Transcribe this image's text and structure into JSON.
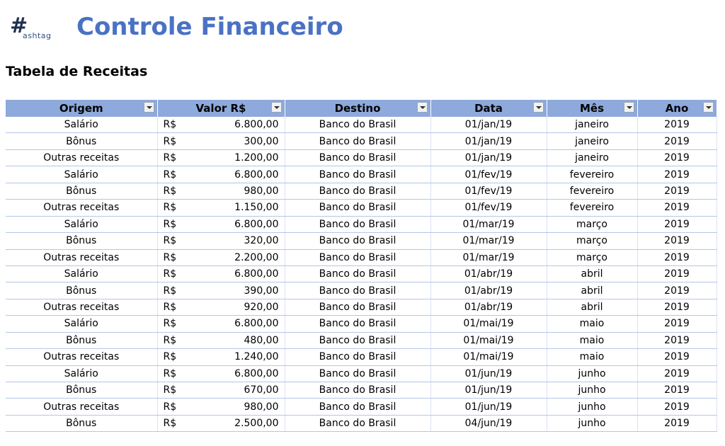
{
  "header": {
    "logo_text": "ashtag",
    "title": "Controle Financeiro"
  },
  "section": {
    "title": "Tabela de Receitas"
  },
  "table": {
    "columns": [
      "Origem",
      "Valor R$",
      "Destino",
      "Data",
      "Mês",
      "Ano"
    ],
    "currency": "R$",
    "rows": [
      [
        "Salário",
        "6.800,00",
        "Banco do Brasil",
        "01/jan/19",
        "janeiro",
        "2019"
      ],
      [
        "Bônus",
        "300,00",
        "Banco do Brasil",
        "01/jan/19",
        "janeiro",
        "2019"
      ],
      [
        "Outras receitas",
        "1.200,00",
        "Banco do Brasil",
        "01/jan/19",
        "janeiro",
        "2019"
      ],
      [
        "Salário",
        "6.800,00",
        "Banco do Brasil",
        "01/fev/19",
        "fevereiro",
        "2019"
      ],
      [
        "Bônus",
        "980,00",
        "Banco do Brasil",
        "01/fev/19",
        "fevereiro",
        "2019"
      ],
      [
        "Outras receitas",
        "1.150,00",
        "Banco do Brasil",
        "01/fev/19",
        "fevereiro",
        "2019"
      ],
      [
        "Salário",
        "6.800,00",
        "Banco do Brasil",
        "01/mar/19",
        "março",
        "2019"
      ],
      [
        "Bônus",
        "320,00",
        "Banco do Brasil",
        "01/mar/19",
        "março",
        "2019"
      ],
      [
        "Outras receitas",
        "2.200,00",
        "Banco do Brasil",
        "01/mar/19",
        "março",
        "2019"
      ],
      [
        "Salário",
        "6.800,00",
        "Banco do Brasil",
        "01/abr/19",
        "abril",
        "2019"
      ],
      [
        "Bônus",
        "390,00",
        "Banco do Brasil",
        "01/abr/19",
        "abril",
        "2019"
      ],
      [
        "Outras receitas",
        "920,00",
        "Banco do Brasil",
        "01/abr/19",
        "abril",
        "2019"
      ],
      [
        "Salário",
        "6.800,00",
        "Banco do Brasil",
        "01/mai/19",
        "maio",
        "2019"
      ],
      [
        "Bônus",
        "480,00",
        "Banco do Brasil",
        "01/mai/19",
        "maio",
        "2019"
      ],
      [
        "Outras receitas",
        "1.240,00",
        "Banco do Brasil",
        "01/mai/19",
        "maio",
        "2019"
      ],
      [
        "Salário",
        "6.800,00",
        "Banco do Brasil",
        "01/jun/19",
        "junho",
        "2019"
      ],
      [
        "Bônus",
        "670,00",
        "Banco do Brasil",
        "01/jun/19",
        "junho",
        "2019"
      ],
      [
        "Outras receitas",
        "980,00",
        "Banco do Brasil",
        "01/jun/19",
        "junho",
        "2019"
      ],
      [
        "Bônus",
        "2.500,00",
        "Banco do Brasil",
        "04/jun/19",
        "junho",
        "2019"
      ]
    ]
  },
  "colors": {
    "title": "#4a72c4",
    "header_bg": "#8ea9db",
    "month_year_text": "#1a1adf",
    "row_border": "#b4c6e7"
  }
}
